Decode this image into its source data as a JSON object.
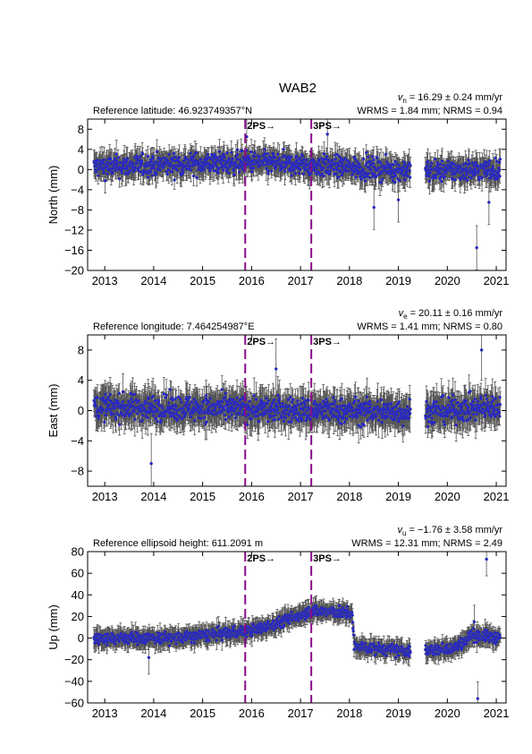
{
  "chart_data": {
    "title": "WAB2",
    "type": "scatter",
    "years": [
      2013,
      2014,
      2015,
      2016,
      2017,
      2018,
      2019,
      2020,
      2021
    ],
    "xlim": [
      2012.65,
      2021.2
    ],
    "events": [
      {
        "label": "2PS→",
        "t": 2015.87
      },
      {
        "label": "3PS→",
        "t": 2017.22
      }
    ],
    "colors": {
      "marker": "#1f1fdc",
      "errorbar": "#555555",
      "event": "#8b0a8b"
    },
    "panels": [
      {
        "id": "north",
        "ylabel": "North (mm)",
        "ref_text": "Reference latitude: 46.923749357°N",
        "velocity": {
          "sym": "v",
          "sub": "n",
          "text": " = 16.29 ± 0.24 mm/yr"
        },
        "stats": "WRMS = 1.84 mm; NRMS = 0.94",
        "ylim": [
          -20,
          10
        ],
        "yticks": [
          8,
          4,
          0,
          -4,
          -8,
          -12,
          -16,
          -20
        ],
        "noise": 1.8,
        "err": 2.0,
        "trend": [
          [
            2012.75,
            0.5
          ],
          [
            2016.0,
            1.5
          ],
          [
            2017.2,
            0.8
          ],
          [
            2019.5,
            -0.3
          ],
          [
            2021.1,
            0.0
          ]
        ],
        "gaps": [
          [
            2019.25,
            2019.55
          ]
        ],
        "outliers": [
          [
            2015.9,
            6.5
          ],
          [
            2017.55,
            7.0
          ],
          [
            2018.5,
            -7.5
          ],
          [
            2019.0,
            -6.0
          ],
          [
            2020.6,
            -15.5
          ],
          [
            2020.85,
            -6.5
          ]
        ]
      },
      {
        "id": "east",
        "ylabel": "East (mm)",
        "ref_text": "Reference longitude: 7.464254987°E",
        "velocity": {
          "sym": "v",
          "sub": "e",
          "text": " = 20.11 ± 0.16 mm/yr"
        },
        "stats": "WRMS = 1.41 mm; NRMS = 0.80",
        "ylim": [
          -10,
          10
        ],
        "yticks": [
          8,
          4,
          0,
          -4,
          -8
        ],
        "noise": 1.4,
        "err": 1.8,
        "trend": [
          [
            2012.75,
            0.5
          ],
          [
            2016.0,
            0.2
          ],
          [
            2017.2,
            0.0
          ],
          [
            2019.5,
            -0.2
          ],
          [
            2021.1,
            0.5
          ]
        ],
        "gaps": [
          [
            2019.25,
            2019.55
          ]
        ],
        "outliers": [
          [
            2013.95,
            -7.0
          ],
          [
            2020.7,
            8.0
          ],
          [
            2016.5,
            5.5
          ]
        ]
      },
      {
        "id": "up",
        "ylabel": "Up (mm)",
        "ref_text": "Reference ellipsoid height: 611.2091 m",
        "velocity": {
          "sym": "v",
          "sub": "u",
          "text": " = −1.76 ± 3.58 mm/yr"
        },
        "stats": "WRMS = 12.31 mm; NRMS = 2.49",
        "ylim": [
          -60,
          80
        ],
        "yticks": [
          80,
          60,
          40,
          20,
          0,
          -20,
          -40,
          -60
        ],
        "noise": 4.5,
        "err": 7.0,
        "trend": [
          [
            2012.75,
            0
          ],
          [
            2014.5,
            0
          ],
          [
            2015.8,
            6
          ],
          [
            2016.3,
            10
          ],
          [
            2016.9,
            20
          ],
          [
            2017.15,
            25
          ],
          [
            2017.3,
            25
          ],
          [
            2018.05,
            23
          ],
          [
            2018.1,
            -8
          ],
          [
            2019.1,
            -12
          ],
          [
            2019.6,
            -12
          ],
          [
            2020.2,
            -8
          ],
          [
            2020.5,
            3
          ],
          [
            2021.1,
            0
          ]
        ],
        "gaps": [
          [
            2019.25,
            2019.55
          ]
        ],
        "outliers": [
          [
            2020.62,
            -56
          ],
          [
            2020.8,
            73
          ],
          [
            2020.55,
            15
          ],
          [
            2013.9,
            -18
          ]
        ]
      }
    ]
  }
}
